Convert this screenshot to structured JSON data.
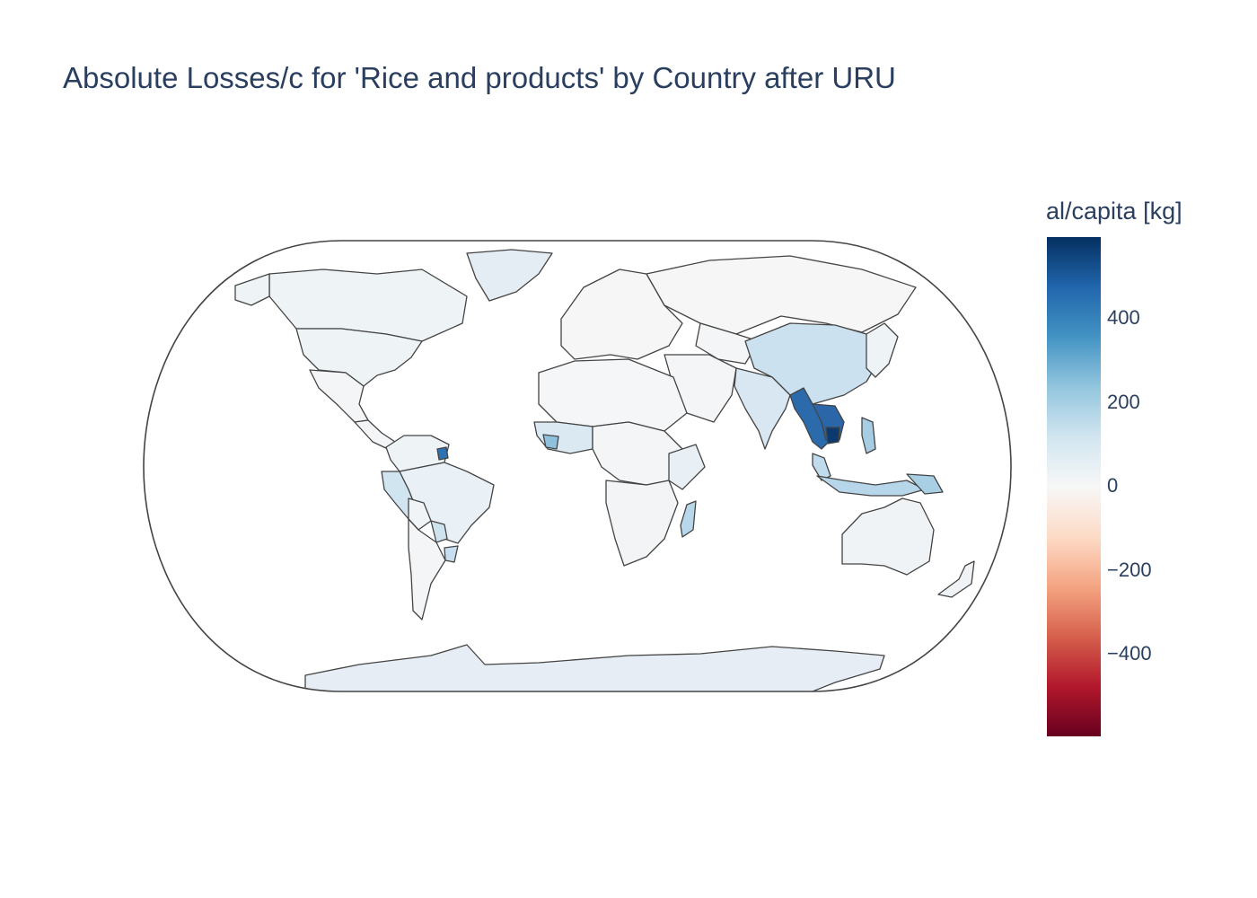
{
  "title": "Absolute Losses/c for 'Rice and products' by Country after URU",
  "map": {
    "type": "choropleth",
    "projection": "natural earth",
    "colorscale": "RdBu",
    "colorscale_stops": [
      "#67001f",
      "#b2182b",
      "#d6604d",
      "#f4a582",
      "#fddbc7",
      "#f7f7f7",
      "#d1e5f0",
      "#92c5de",
      "#4393c3",
      "#2166ac",
      "#053061"
    ],
    "zmin": -590,
    "zmax": 590,
    "border_color": "#444444",
    "frame_color": "#444444"
  },
  "colorbar": {
    "title": "al/capita [kg]",
    "ticks": [
      {
        "value": 400,
        "label": "400"
      },
      {
        "value": 200,
        "label": "200"
      },
      {
        "value": 0,
        "label": "0"
      },
      {
        "value": -200,
        "label": "−200"
      },
      {
        "value": -400,
        "label": "−400"
      }
    ]
  }
}
